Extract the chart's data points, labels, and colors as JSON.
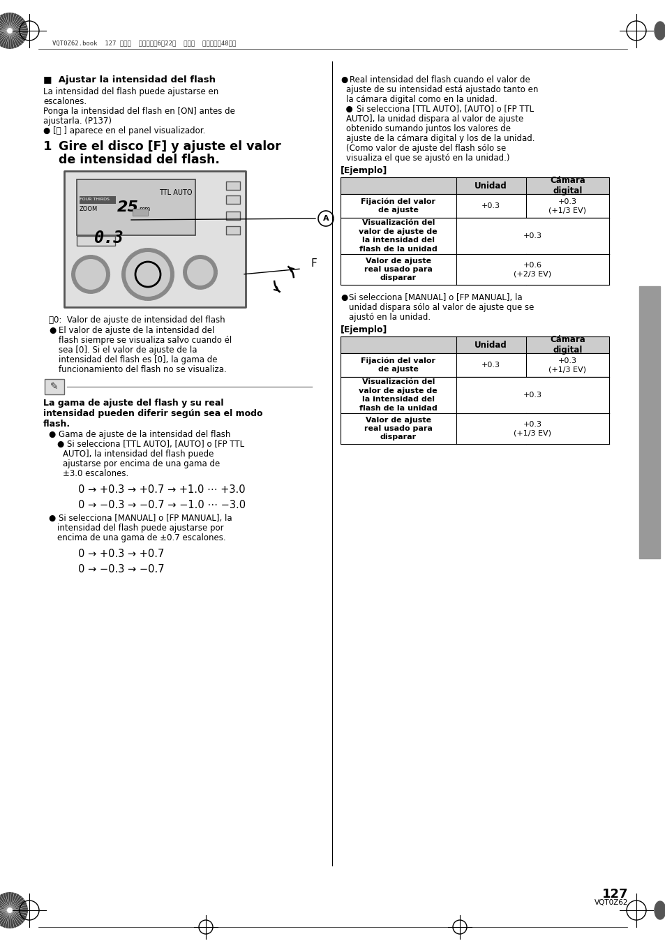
{
  "page_num": "127",
  "page_code": "VQT0Z62",
  "header_text": "VQT0Z62.book  127 ページ  ２００６年6月22日  木曜日  午前１１晄48６分",
  "bg_color": "#ffffff",
  "section_title": "■  Ajustar la intensidad del flash",
  "formula1": "0 → +0.3 → +0.7 → +1.0 ⋯ +3.0",
  "formula2": "0 → −0.3 → −0.7 → −1.0 ⋯ −3.0",
  "formula3": "0 → +0.3 → +0.7",
  "formula4": "0 → −0.3 → −0.7",
  "table1": {
    "header": [
      "",
      "Unidad",
      "Cámara\ndigital"
    ],
    "rows": [
      [
        "Fijación del valor\nde ajuste",
        "+0.3",
        "+0.3\n(+1/3 EV)"
      ],
      [
        "Visualización del\nvalor de ajuste de\nla intensidad del\nflash de la unidad",
        "+0.3",
        ""
      ],
      [
        "Valor de ajuste\nreal usado para\ndisparar",
        "+0.6\n(+2/3 EV)",
        ""
      ]
    ]
  },
  "table2": {
    "header": [
      "",
      "Unidad",
      "Cámara\ndigital"
    ],
    "rows": [
      [
        "Fijación del valor\nde ajuste",
        "+0.3",
        "+0.3\n(+1/3 EV)"
      ],
      [
        "Visualización del\nvalor de ajuste de\nla intensidad del\nflash de la unidad",
        "+0.3",
        ""
      ],
      [
        "Valor de ajuste\nreal usado para\ndisparar",
        "+0.3\n(+1/3 EV)",
        ""
      ]
    ]
  }
}
